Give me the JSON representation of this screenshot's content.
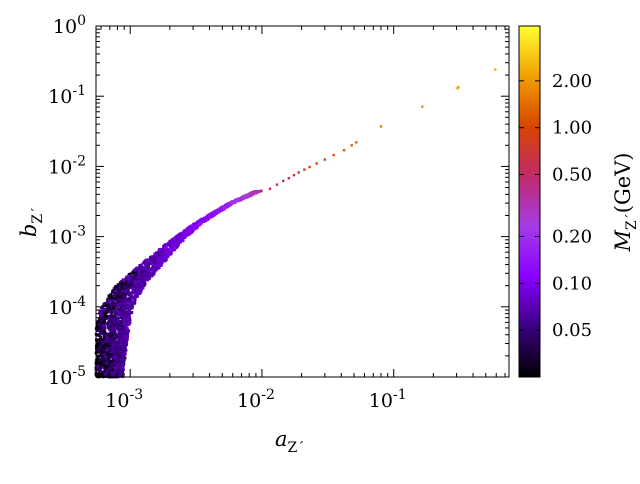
{
  "chart_data": {
    "type": "scatter",
    "title": "",
    "x_scale": "log",
    "y_scale": "log",
    "xlim": [
      0.00055,
      0.75
    ],
    "ylim": [
      1e-05,
      1
    ],
    "xlabel_main": "a",
    "xlabel_sub": "Z´",
    "ylabel_main": "b",
    "ylabel_sub": "Z´",
    "x_ticks": [
      {
        "value": 0.001,
        "base": "10",
        "exp": "-3"
      },
      {
        "value": 0.01,
        "base": "10",
        "exp": "-2"
      },
      {
        "value": 0.1,
        "base": "10",
        "exp": "-1"
      }
    ],
    "y_ticks": [
      {
        "value": 1e-05,
        "base": "10",
        "exp": "-5"
      },
      {
        "value": 0.0001,
        "base": "10",
        "exp": "-4"
      },
      {
        "value": 0.001,
        "base": "10",
        "exp": "-3"
      },
      {
        "value": 0.01,
        "base": "10",
        "exp": "-2"
      },
      {
        "value": 0.1,
        "base": "10",
        "exp": "-1"
      },
      {
        "value": 1,
        "base": "10",
        "exp": "0"
      }
    ],
    "colorbar": {
      "label_main": "M",
      "label_sub": "Z´",
      "label_unit": "(GeV)",
      "scale": "log",
      "range": [
        0.025,
        4.5
      ],
      "ticks": [
        {
          "value": 0.05,
          "label": "0.05"
        },
        {
          "value": 0.1,
          "label": "0.10"
        },
        {
          "value": 0.2,
          "label": "0.20"
        },
        {
          "value": 0.5,
          "label": "0.50"
        },
        {
          "value": 1.0,
          "label": "1.00"
        },
        {
          "value": 2.0,
          "label": "2.00"
        }
      ],
      "colormap": [
        "#000000",
        "#3a0080",
        "#8a00ff",
        "#a43ce8",
        "#c02a6a",
        "#d84400",
        "#f0a000",
        "#ffff33"
      ]
    },
    "band": {
      "description_note": "",
      "a_at_b": [
        [
          1e-05,
          0.00055,
          0.00088
        ],
        [
          2e-05,
          0.00055,
          0.00092
        ],
        [
          5e-05,
          0.00055,
          0.00098
        ],
        [
          0.0001,
          0.0006,
          0.00105
        ],
        [
          0.0002,
          0.00078,
          0.00128
        ],
        [
          0.0004,
          0.0012,
          0.00175
        ],
        [
          0.0008,
          0.0019,
          0.0024
        ],
        [
          0.0015,
          0.003,
          0.0034
        ],
        [
          0.003,
          0.0056,
          0.0061
        ],
        [
          0.0045,
          0.009,
          0.01
        ]
      ],
      "mass_at_b": [
        [
          1e-05,
          0.06
        ],
        [
          0.0001,
          0.07
        ],
        [
          0.0005,
          0.08
        ],
        [
          0.001,
          0.1
        ],
        [
          0.002,
          0.14
        ],
        [
          0.003,
          0.22
        ],
        [
          0.0045,
          0.35
        ]
      ]
    },
    "points": [
      {
        "x": 0.0115,
        "y": 0.0048,
        "m": 0.45
      },
      {
        "x": 0.013,
        "y": 0.0055,
        "m": 0.5
      },
      {
        "x": 0.0145,
        "y": 0.0062,
        "m": 0.55
      },
      {
        "x": 0.016,
        "y": 0.0068,
        "m": 0.6
      },
      {
        "x": 0.0175,
        "y": 0.0075,
        "m": 0.65
      },
      {
        "x": 0.019,
        "y": 0.0082,
        "m": 0.7
      },
      {
        "x": 0.021,
        "y": 0.009,
        "m": 0.75
      },
      {
        "x": 0.023,
        "y": 0.0098,
        "m": 0.8
      },
      {
        "x": 0.026,
        "y": 0.011,
        "m": 0.9
      },
      {
        "x": 0.03,
        "y": 0.0125,
        "m": 1.0
      },
      {
        "x": 0.035,
        "y": 0.0145,
        "m": 1.1
      },
      {
        "x": 0.042,
        "y": 0.017,
        "m": 1.2
      },
      {
        "x": 0.048,
        "y": 0.02,
        "m": 1.3
      },
      {
        "x": 0.052,
        "y": 0.022,
        "m": 1.35
      },
      {
        "x": 0.08,
        "y": 0.037,
        "m": 1.6
      },
      {
        "x": 0.165,
        "y": 0.071,
        "m": 1.9
      },
      {
        "x": 0.305,
        "y": 0.13,
        "m": 2.2
      },
      {
        "x": 0.31,
        "y": 0.135,
        "m": 2.2
      },
      {
        "x": 0.59,
        "y": 0.24,
        "m": 2.5
      }
    ]
  }
}
